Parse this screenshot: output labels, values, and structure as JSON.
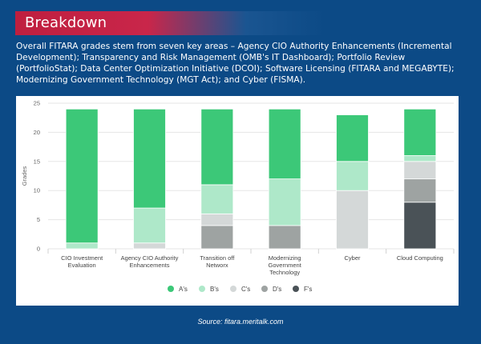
{
  "header": {
    "title": "Breakdown"
  },
  "intro_text": "Overall FITARA grades stem from seven key areas – Agency CIO Authority Enhancements (Incremental Development); Transparency and Risk Management (OMB's IT Dashboard); Portfolio Review (PortfolioStat); Data Center Optimization Initiative (DCOI); Software Licensing (FITARA and MEGABYTE); Modernizing Government Technology (MGT Act); and Cyber (FISMA).",
  "source_text": "Source: fitara.meritalk.com",
  "chart_data": {
    "type": "bar",
    "stacked": true,
    "title": "",
    "xlabel": "",
    "ylabel": "Grades",
    "ylim": [
      0,
      25
    ],
    "yticks": [
      0,
      5,
      10,
      15,
      20,
      25
    ],
    "grid": true,
    "legend_position": "bottom",
    "categories": [
      [
        "CIO Investment",
        "Evaluation"
      ],
      [
        "Agency CIO Authority",
        "Enhancements"
      ],
      [
        "Transition off",
        "Networx"
      ],
      [
        "Modernizing",
        "Government",
        "Technology"
      ],
      [
        "Cyber"
      ],
      [
        "Cloud Computing"
      ]
    ],
    "series": [
      {
        "name": "F's",
        "color": "#4a5257",
        "values": [
          0,
          0,
          0,
          0,
          0,
          8
        ]
      },
      {
        "name": "D's",
        "color": "#9ea3a2",
        "values": [
          0,
          0,
          4,
          4,
          0,
          4
        ]
      },
      {
        "name": "C's",
        "color": "#d4d8d8",
        "values": [
          0,
          1,
          2,
          0,
          10,
          3
        ]
      },
      {
        "name": "B's",
        "color": "#aee8c9",
        "values": [
          1,
          6,
          5,
          8,
          5,
          1
        ]
      },
      {
        "name": "A's",
        "color": "#3cc878",
        "values": [
          23,
          17,
          13,
          12,
          8,
          8
        ]
      }
    ],
    "legend_order": [
      "A's",
      "B's",
      "C's",
      "D's",
      "F's"
    ]
  }
}
